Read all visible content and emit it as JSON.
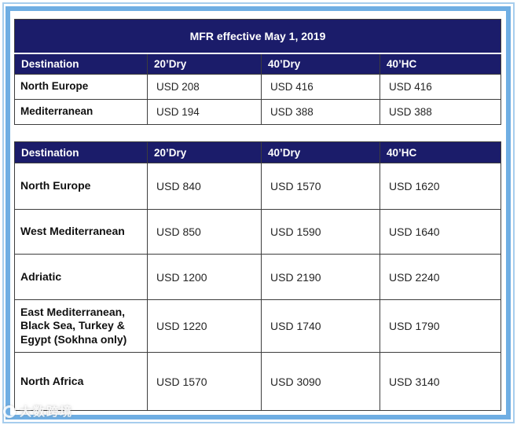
{
  "colors": {
    "header_bg": "#1B1C6A",
    "header_text": "#FFFFFF",
    "frame_main": "#6FAEE3",
    "frame_light": "#A6CDED",
    "cell_border": "#3D3D3D"
  },
  "table1": {
    "title": "MFR effective May 1, 2019",
    "columns": [
      "Destination",
      "20’Dry",
      "40’Dry",
      "40’HC"
    ],
    "rows": [
      {
        "destination": "North Europe",
        "values": [
          "USD 208",
          "USD 416",
          "USD 416"
        ]
      },
      {
        "destination": "Mediterranean",
        "values": [
          "USD 194",
          "USD 388",
          "USD 388"
        ]
      }
    ]
  },
  "table2": {
    "columns": [
      "Destination",
      "20’Dry",
      "40’Dry",
      "40’HC"
    ],
    "rows": [
      {
        "destination": "North Europe",
        "values": [
          "USD 840",
          "USD 1570",
          "USD 1620"
        ]
      },
      {
        "destination": "West Mediterranean",
        "values": [
          "USD 850",
          "USD 1590",
          "USD 1640"
        ]
      },
      {
        "destination": "Adriatic",
        "values": [
          "USD 1200",
          "USD 2190",
          "USD 2240"
        ]
      },
      {
        "destination": "East Mediterranean, Black Sea, Turkey & Egypt (Sokhna only)",
        "values": [
          "USD 1220",
          "USD 1740",
          "USD 1790"
        ]
      },
      {
        "destination": "North Africa",
        "values": [
          "USD 1570",
          "USD 3090",
          "USD 3140"
        ]
      }
    ]
  },
  "watermark": {
    "logo": "circle-logo",
    "text": "大数跨境"
  }
}
